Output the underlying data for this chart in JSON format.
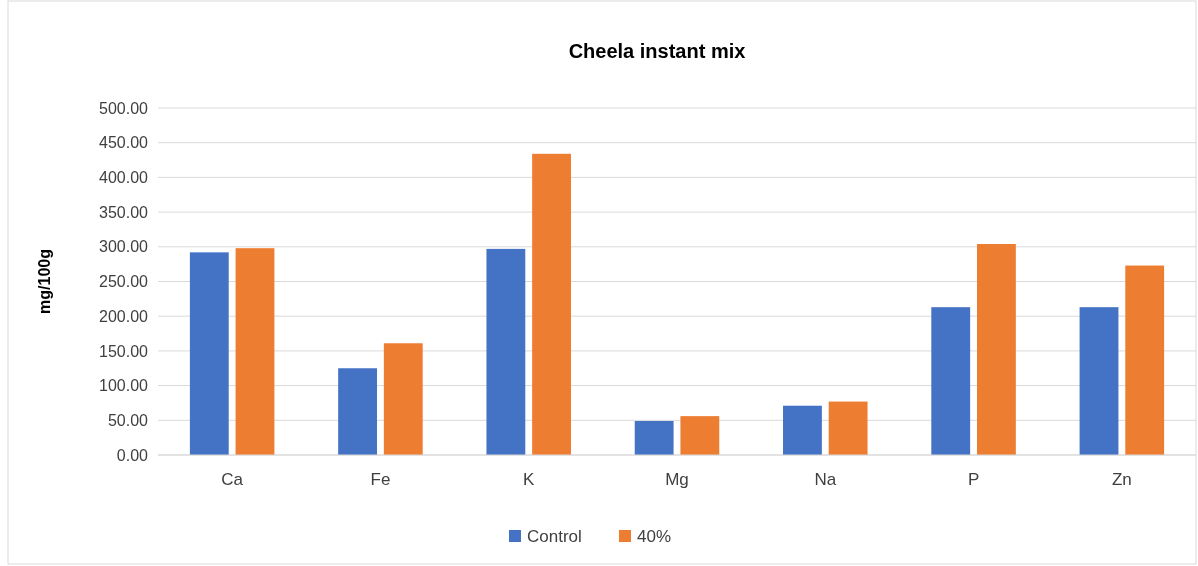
{
  "chart_data": {
    "type": "bar",
    "title": "Cheela instant mix",
    "ylabel": "mg/100g",
    "categories": [
      "Ca",
      "Fe",
      "K",
      "Mg",
      "Na",
      "P",
      "Zn"
    ],
    "series": [
      {
        "name": "Control",
        "color": "#4472c4",
        "values": [
          292,
          125,
          297,
          49,
          71,
          213,
          213
        ]
      },
      {
        "name": "40%",
        "color": "#ed7d31",
        "values": [
          298,
          161,
          434,
          56,
          77,
          304,
          273
        ]
      }
    ],
    "ylim": [
      0,
      500
    ],
    "yticks": [
      {
        "value": 0,
        "label": "0.00"
      },
      {
        "value": 50,
        "label": "50.00"
      },
      {
        "value": 100,
        "label": "100.00"
      },
      {
        "value": 150,
        "label": "150.00"
      },
      {
        "value": 200,
        "label": "200.00"
      },
      {
        "value": 250,
        "label": "250.00"
      },
      {
        "value": 300,
        "label": "300.00"
      },
      {
        "value": 350,
        "label": "350.00"
      },
      {
        "value": 400,
        "label": "400.00"
      },
      {
        "value": 450,
        "label": "450.00"
      },
      {
        "value": 500,
        "label": "500.00"
      }
    ],
    "grid": "y",
    "legend": "bottom"
  }
}
